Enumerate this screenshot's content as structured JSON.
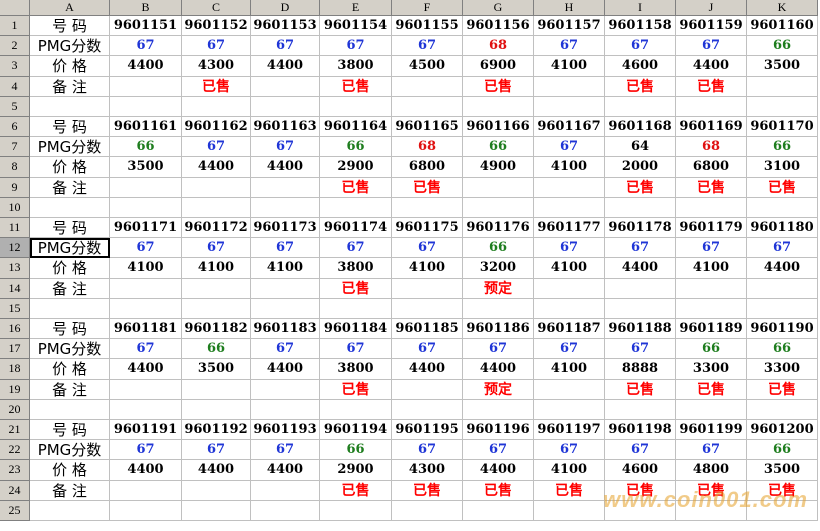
{
  "columns": [
    "A",
    "B",
    "C",
    "D",
    "E",
    "F",
    "G",
    "H",
    "I",
    "J",
    "K"
  ],
  "rows": [
    "1",
    "2",
    "3",
    "4",
    "5",
    "6",
    "7",
    "8",
    "9",
    "10",
    "11",
    "12",
    "13",
    "14",
    "15",
    "16",
    "17",
    "18",
    "19",
    "20",
    "21",
    "22",
    "23",
    "24",
    "25"
  ],
  "labels": {
    "number": "号 码",
    "score": "PMG分数",
    "price": "价 格",
    "note": "备 注"
  },
  "colors": {
    "blue": "#1f35d6",
    "green": "#1e7d1e",
    "red": "#e01010",
    "sold_red": "#ff0000",
    "header_gray": "#d4d0c8"
  },
  "blocks": [
    {
      "numbers": [
        "9601151",
        "9601152",
        "9601153",
        "9601154",
        "9601155",
        "9601156",
        "9601157",
        "9601158",
        "9601159",
        "9601160"
      ],
      "scores": [
        "67",
        "67",
        "67",
        "67",
        "67",
        "68",
        "67",
        "67",
        "67",
        "66"
      ],
      "score_colors": [
        "blue",
        "blue",
        "blue",
        "blue",
        "blue",
        "red",
        "blue",
        "blue",
        "blue",
        "green"
      ],
      "prices": [
        "4400",
        "4300",
        "4400",
        "3800",
        "4500",
        "6900",
        "4100",
        "4600",
        "4400",
        "3500"
      ],
      "notes": [
        "",
        "已售",
        "",
        "已售",
        "",
        "已售",
        "",
        "已售",
        "已售",
        ""
      ]
    },
    {
      "numbers": [
        "9601161",
        "9601162",
        "9601163",
        "9601164",
        "9601165",
        "9601166",
        "9601167",
        "9601168",
        "9601169",
        "9601170"
      ],
      "scores": [
        "66",
        "67",
        "67",
        "66",
        "68",
        "66",
        "67",
        "64",
        "68",
        "66"
      ],
      "score_colors": [
        "green",
        "blue",
        "blue",
        "green",
        "red",
        "green",
        "blue",
        "black",
        "red",
        "green"
      ],
      "prices": [
        "3500",
        "4400",
        "4400",
        "2900",
        "6800",
        "4900",
        "4100",
        "2000",
        "6800",
        "3100"
      ],
      "notes": [
        "",
        "",
        "",
        "已售",
        "已售",
        "",
        "",
        "已售",
        "已售",
        "已售"
      ]
    },
    {
      "numbers": [
        "9601171",
        "9601172",
        "9601173",
        "9601174",
        "9601175",
        "9601176",
        "9601177",
        "9601178",
        "9601179",
        "9601180"
      ],
      "scores": [
        "67",
        "67",
        "67",
        "67",
        "67",
        "66",
        "67",
        "67",
        "67",
        "67"
      ],
      "score_colors": [
        "blue",
        "blue",
        "blue",
        "blue",
        "blue",
        "green",
        "blue",
        "blue",
        "blue",
        "blue"
      ],
      "prices": [
        "4100",
        "4100",
        "4100",
        "3800",
        "4100",
        "3200",
        "4100",
        "4400",
        "4100",
        "4400"
      ],
      "notes": [
        "",
        "",
        "",
        "已售",
        "",
        "预定",
        "",
        "",
        "",
        ""
      ]
    },
    {
      "numbers": [
        "9601181",
        "9601182",
        "9601183",
        "9601184",
        "9601185",
        "9601186",
        "9601187",
        "9601188",
        "9601189",
        "9601190"
      ],
      "scores": [
        "67",
        "66",
        "67",
        "67",
        "67",
        "67",
        "67",
        "67",
        "66",
        "66"
      ],
      "score_colors": [
        "blue",
        "green",
        "blue",
        "blue",
        "blue",
        "blue",
        "blue",
        "blue",
        "green",
        "green"
      ],
      "prices": [
        "4400",
        "3500",
        "4400",
        "3800",
        "4400",
        "4400",
        "4100",
        "8888",
        "3300",
        "3300"
      ],
      "notes": [
        "",
        "",
        "",
        "已售",
        "",
        "预定",
        "",
        "已售",
        "已售",
        "已售"
      ]
    },
    {
      "numbers": [
        "9601191",
        "9601192",
        "9601193",
        "9601194",
        "9601195",
        "9601196",
        "9601197",
        "9601198",
        "9601199",
        "9601200"
      ],
      "scores": [
        "67",
        "67",
        "67",
        "66",
        "67",
        "67",
        "67",
        "67",
        "67",
        "66"
      ],
      "score_colors": [
        "blue",
        "blue",
        "blue",
        "green",
        "blue",
        "blue",
        "blue",
        "blue",
        "blue",
        "green"
      ],
      "prices": [
        "4400",
        "4400",
        "4400",
        "2900",
        "4300",
        "4400",
        "4100",
        "4600",
        "4800",
        "3500"
      ],
      "notes": [
        "",
        "",
        "",
        "已售",
        "已售",
        "已售",
        "已售",
        "已售",
        "已售",
        "已售"
      ]
    }
  ],
  "watermark": "www.coin001.com"
}
